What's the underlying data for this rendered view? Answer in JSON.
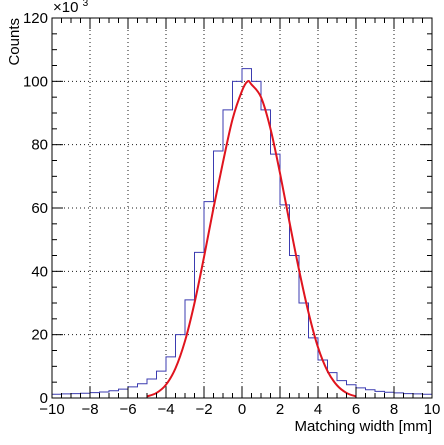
{
  "chart_data": {
    "type": "line",
    "title": "",
    "xlabel": "Matching width [mm]",
    "ylabel": "Counts",
    "multiplier": {
      "base": "×10",
      "exponent": "3"
    },
    "xlim": [
      -10,
      10
    ],
    "ylim": [
      0,
      120
    ],
    "x_ticks": [
      -10,
      -8,
      -6,
      -4,
      -2,
      0,
      2,
      4,
      6,
      8,
      10
    ],
    "y_ticks": [
      0,
      20,
      40,
      60,
      80,
      100,
      120
    ],
    "x_tick_labels": [
      "−10",
      "−8",
      "−6",
      "−4",
      "−2",
      "0",
      "2",
      "4",
      "6",
      "8",
      "10"
    ],
    "y_tick_labels": [
      "0",
      "20",
      "40",
      "60",
      "80",
      "100",
      "120"
    ],
    "grid": true,
    "colors": {
      "histogram": "#3b3bb0",
      "fit": "#e0141e",
      "frame": "#000000"
    },
    "series": [
      {
        "type": "step",
        "x": [
          -10.0,
          -9.5,
          -9.0,
          -8.5,
          -8.0,
          -7.5,
          -7.0,
          -6.5,
          -6.0,
          -5.5,
          -5.0,
          -4.5,
          -4.0,
          -3.5,
          -3.0,
          -2.5,
          -2.0,
          -1.5,
          -1.0,
          -0.5,
          0.0,
          0.5,
          1.0,
          1.5,
          2.0,
          2.5,
          3.0,
          3.5,
          4.0,
          4.5,
          5.0,
          5.5,
          6.0,
          6.5,
          7.0,
          7.5,
          8.0,
          8.5,
          9.0,
          9.5,
          10.0
        ],
        "values": [
          1.2,
          1.3,
          1.4,
          1.5,
          1.7,
          1.9,
          2.3,
          2.8,
          3.5,
          4.5,
          6.0,
          8.5,
          13,
          20,
          31,
          46,
          62,
          78,
          91,
          100,
          104,
          100,
          91,
          77,
          61,
          45,
          30,
          19,
          12,
          8,
          5.5,
          4.2,
          3.2,
          2.6,
          2.1,
          1.8,
          1.6,
          1.4,
          1.3,
          1.2,
          1.1
        ]
      },
      {
        "type": "line",
        "fit": "gaussian",
        "x": [
          -5.0,
          -4.5,
          -4.0,
          -3.5,
          -3.0,
          -2.5,
          -2.0,
          -1.5,
          -1.0,
          -0.5,
          0.0,
          0.3,
          0.5,
          1.0,
          1.5,
          2.0,
          2.5,
          3.0,
          3.5,
          4.0,
          4.5,
          5.0,
          5.5,
          6.0
        ],
        "values": [
          0.5,
          1.6,
          4.2,
          9.4,
          18.0,
          30.0,
          44.5,
          60.0,
          74.5,
          88.0,
          97.0,
          100.0,
          99.0,
          95.0,
          85.0,
          71.0,
          55.5,
          40.5,
          27.0,
          16.0,
          8.5,
          4.0,
          1.6,
          0.5
        ]
      }
    ]
  }
}
